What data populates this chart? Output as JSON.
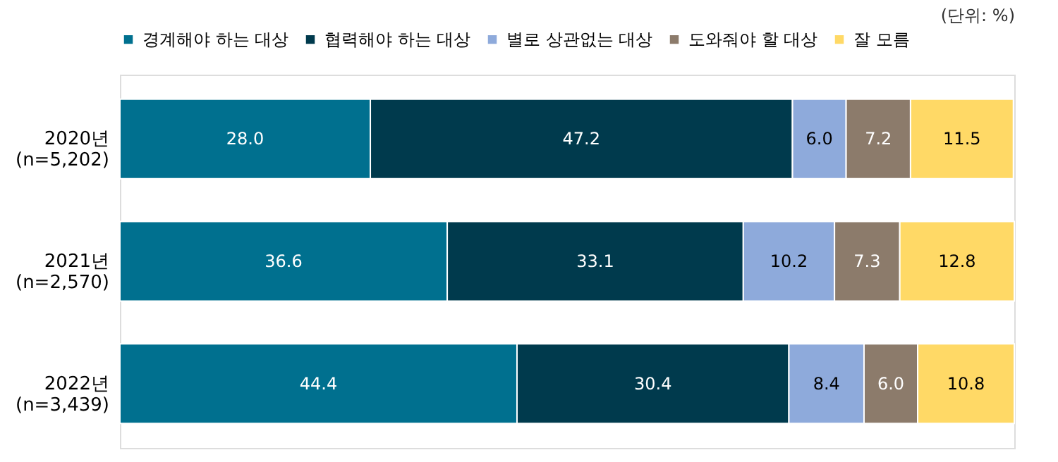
{
  "chart_data": {
    "type": "bar",
    "orientation": "horizontal",
    "stacked": true,
    "legend": "top",
    "grid": false,
    "tick_labels": "y",
    "categories": [
      "2020년\n(n=5,202)",
      "2021년\n(n=2,570)",
      "2022년\n(n=3,439)"
    ],
    "series": [
      {
        "name": "경계해야 하는 대상",
        "color": "#00708f",
        "values": [
          28.0,
          36.6,
          44.4
        ],
        "value_labels": [
          "28.0",
          "36.6",
          "44.4"
        ]
      },
      {
        "name": "협력해야 하는 대상",
        "color": "#003a4d",
        "values": [
          47.2,
          33.1,
          30.4
        ],
        "value_labels": [
          "47.2",
          "33.1",
          "30.4"
        ]
      },
      {
        "name": "별로 상관없는 대상",
        "color": "#8eaadb",
        "values": [
          6.0,
          10.2,
          8.4
        ],
        "value_labels": [
          "6.0",
          "10.2",
          "8.4"
        ]
      },
      {
        "name": "도와줘야 할 대상",
        "color": "#8c7b6b",
        "values": [
          7.2,
          7.3,
          6.0
        ],
        "value_labels": [
          "7.2",
          "7.3",
          "6.0"
        ]
      },
      {
        "name": "잘 모름",
        "color": "#ffd966",
        "values": [
          11.5,
          12.8,
          10.8
        ],
        "value_labels": [
          "11.5",
          "12.8",
          "10.8"
        ]
      }
    ],
    "annotations": [
      "(단위: %)"
    ]
  }
}
